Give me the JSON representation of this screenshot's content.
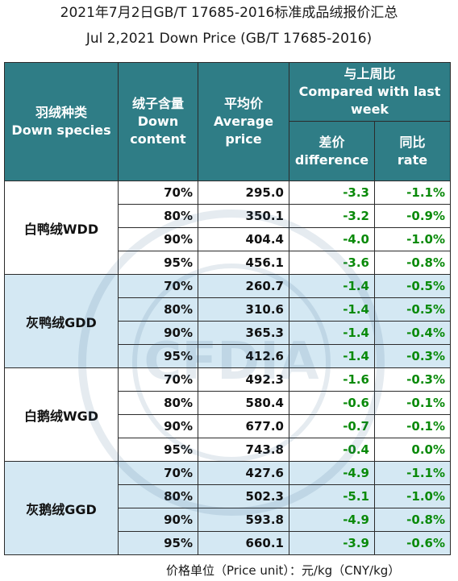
{
  "titles": {
    "cn": "2021年7月2日GB/T 17685-2016标准成品绒报价汇总",
    "en": "Jul 2,2021 Down Price (GB/T 17685-2016)"
  },
  "header": {
    "species_cn": "羽绒种类",
    "species_en": "Down species",
    "content_cn": "绒子含量",
    "content_en_1": "Down",
    "content_en_2": "content",
    "price_cn": "平均价",
    "price_en_1": "Average",
    "price_en_2": "price",
    "compare_cn": "与上周比",
    "compare_en_1": "Compared with last",
    "compare_en_2": "week",
    "diff_cn": "差价",
    "diff_en": "difference",
    "rate_cn": "同比",
    "rate_en": "rate"
  },
  "groups": [
    {
      "name": "白鸭绒WDD",
      "rows": [
        {
          "content": "70%",
          "price": "295.0",
          "diff": "-3.3",
          "rate": "-1.1%"
        },
        {
          "content": "80%",
          "price": "350.1",
          "diff": "-3.2",
          "rate": "-0.9%"
        },
        {
          "content": "90%",
          "price": "404.4",
          "diff": "-4.0",
          "rate": "-1.0%"
        },
        {
          "content": "95%",
          "price": "456.1",
          "diff": "-3.6",
          "rate": "-0.8%"
        }
      ]
    },
    {
      "name": "灰鸭绒GDD",
      "rows": [
        {
          "content": "70%",
          "price": "260.7",
          "diff": "-1.4",
          "rate": "-0.5%"
        },
        {
          "content": "80%",
          "price": "310.6",
          "diff": "-1.4",
          "rate": "-0.5%"
        },
        {
          "content": "90%",
          "price": "365.3",
          "diff": "-1.4",
          "rate": "-0.4%"
        },
        {
          "content": "95%",
          "price": "412.6",
          "diff": "-1.4",
          "rate": "-0.3%"
        }
      ]
    },
    {
      "name": "白鹅绒WGD",
      "rows": [
        {
          "content": "70%",
          "price": "492.3",
          "diff": "-1.6",
          "rate": "-0.3%"
        },
        {
          "content": "80%",
          "price": "580.4",
          "diff": "-0.6",
          "rate": "-0.1%"
        },
        {
          "content": "90%",
          "price": "677.0",
          "diff": "-0.7",
          "rate": "-0.1%"
        },
        {
          "content": "95%",
          "price": "743.8",
          "diff": "-0.4",
          "rate": "0.0%"
        }
      ]
    },
    {
      "name": "灰鹅绒GGD",
      "rows": [
        {
          "content": "70%",
          "price": "427.6",
          "diff": "-4.9",
          "rate": "-1.1%"
        },
        {
          "content": "80%",
          "price": "502.3",
          "diff": "-5.1",
          "rate": "-1.0%"
        },
        {
          "content": "90%",
          "price": "593.8",
          "diff": "-4.9",
          "rate": "-0.8%"
        },
        {
          "content": "95%",
          "price": "660.1",
          "diff": "-3.9",
          "rate": "-0.6%"
        }
      ]
    }
  ],
  "footer": "价格单位（Price unit）：元/kg（CNY/kg）",
  "watermark": {
    "text": "CHINA FEATHER AND DOWN INDUSTRIAL ASSOCIATION",
    "logo_letters": "CFDIA"
  },
  "colors": {
    "header_bg": "#2f7d86",
    "band_blue": "#d4e8f3",
    "change_green": "#0a8a0a"
  }
}
